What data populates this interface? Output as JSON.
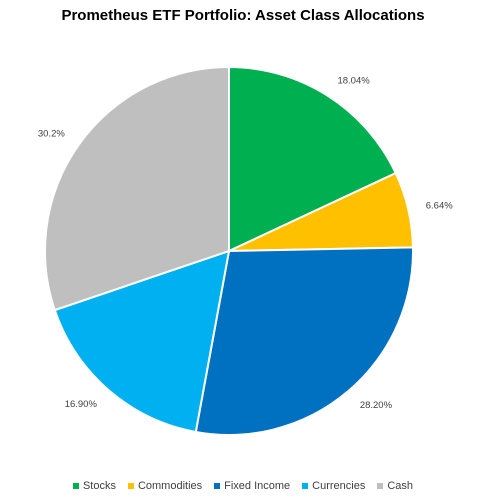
{
  "chart_data": {
    "type": "pie",
    "title": "Prometheus ETF Portfolio: Asset Class Allocations",
    "categories": [
      "Stocks",
      "Commodities",
      "Fixed Income",
      "Currencies",
      "Cash"
    ],
    "values": [
      18.04,
      6.64,
      28.2,
      16.9,
      30.2
    ],
    "labels": [
      "18.04%",
      "6.64%",
      "28.20%",
      "16.90%",
      "30.2%"
    ],
    "colors": [
      "#00B050",
      "#FFC000",
      "#0070C0",
      "#00B0F0",
      "#BFBFBF"
    ],
    "legend_position": "bottom"
  }
}
